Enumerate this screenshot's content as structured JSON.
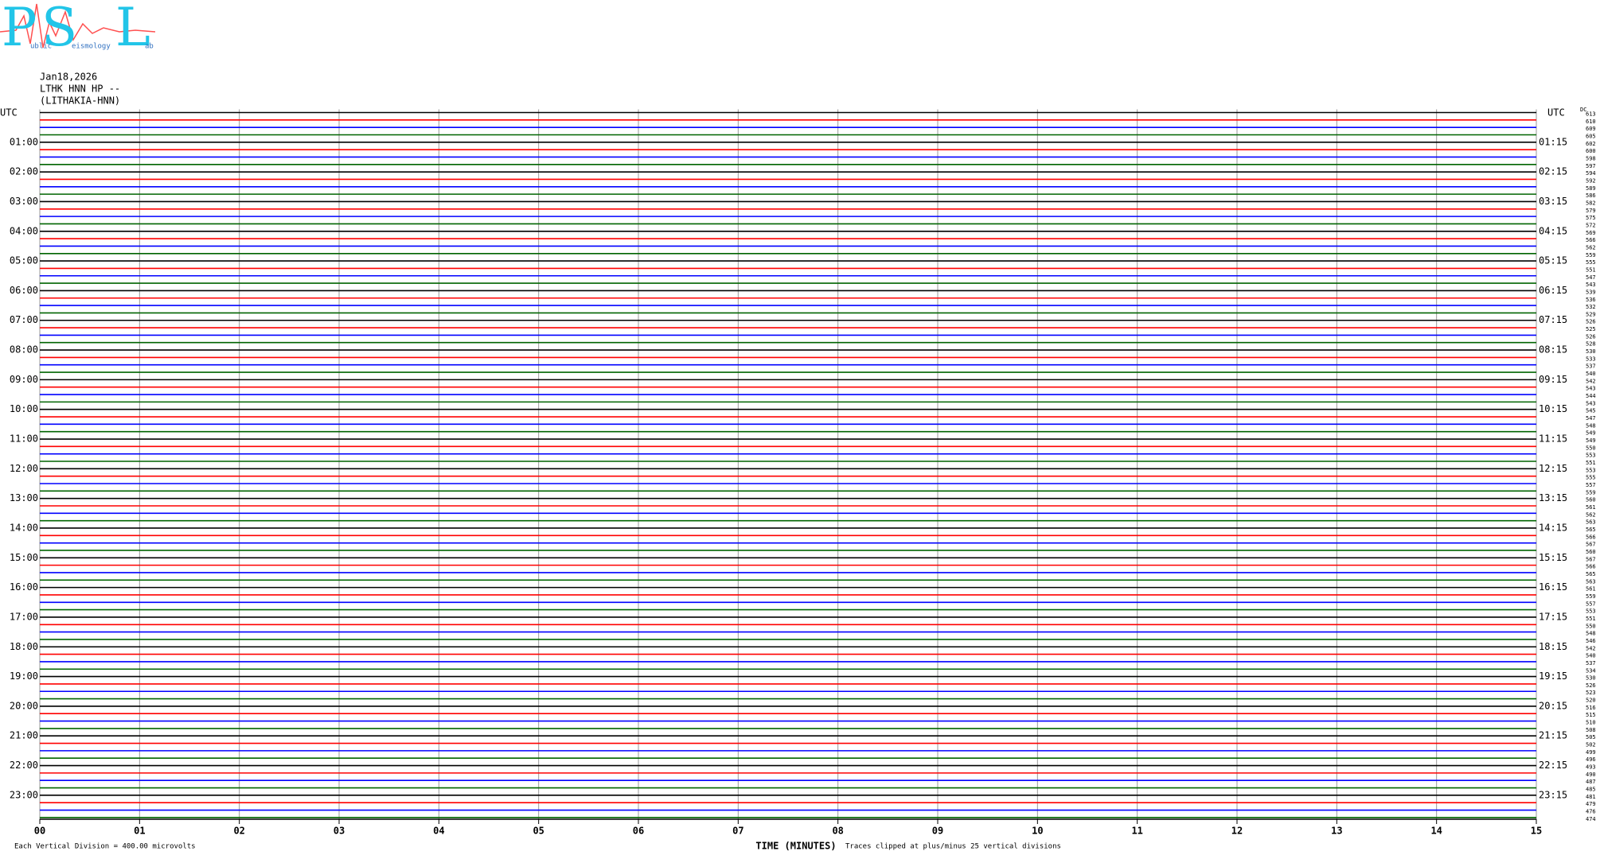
{
  "logo": {
    "letters": [
      "P",
      "S",
      "L"
    ],
    "words": [
      "ublic",
      "eismology",
      "ab"
    ]
  },
  "header": {
    "date": "Jan18,2026",
    "station": "LTHK HNN HP --",
    "location": "(LITHAKIA-HNN)"
  },
  "left_axis_title": "UTC",
  "right_axis_title": "UTC",
  "left_hour_labels": [
    "01:00",
    "02:00",
    "03:00",
    "04:00",
    "05:00",
    "06:00",
    "07:00",
    "08:00",
    "09:00",
    "10:00",
    "11:00",
    "12:00",
    "13:00",
    "14:00",
    "15:00",
    "16:00",
    "17:00",
    "18:00",
    "19:00",
    "20:00",
    "21:00",
    "22:00",
    "23:00"
  ],
  "right_hour_labels": [
    "01:15",
    "02:15",
    "03:15",
    "04:15",
    "05:15",
    "06:15",
    "07:15",
    "08:15",
    "09:15",
    "10:15",
    "11:15",
    "12:15",
    "13:15",
    "14:15",
    "15:15",
    "16:15",
    "17:15",
    "18:15",
    "19:15",
    "20:15",
    "21:15",
    "22:15",
    "23:15"
  ],
  "x_labels": [
    "00",
    "01",
    "02",
    "03",
    "04",
    "05",
    "06",
    "07",
    "08",
    "09",
    "10",
    "11",
    "12",
    "13",
    "14",
    "15"
  ],
  "x_axis_title": "TIME (MINUTES)",
  "footer_left": "Each Vertical Division =  400.00 microvolts",
  "footer_right": "Traces clipped at plus/minus 25 vertical divisions",
  "dc_label": "DC",
  "dc_offsets": [
    613,
    610,
    609,
    605,
    602,
    600,
    598,
    597,
    594,
    592,
    589,
    586,
    582,
    579,
    575,
    572,
    569,
    566,
    562,
    559,
    555,
    551,
    547,
    543,
    539,
    536,
    532,
    529,
    526,
    525,
    526,
    528,
    530,
    533,
    537,
    540,
    542,
    543,
    544,
    543,
    545,
    547,
    548,
    549,
    549,
    550,
    553,
    551,
    553,
    555,
    557,
    559,
    560,
    561,
    562,
    563,
    565,
    566,
    567,
    560,
    567,
    566,
    565,
    563,
    561,
    559,
    557,
    553,
    551,
    550,
    548,
    546,
    542,
    540,
    537,
    534,
    530,
    526,
    523,
    520,
    516,
    515,
    510,
    508,
    505,
    502,
    499,
    496,
    493,
    490,
    487,
    485,
    481,
    479,
    476,
    474
  ],
  "trace_colors": [
    "#000000",
    "#ff0000",
    "#0000ff",
    "#006400"
  ]
}
